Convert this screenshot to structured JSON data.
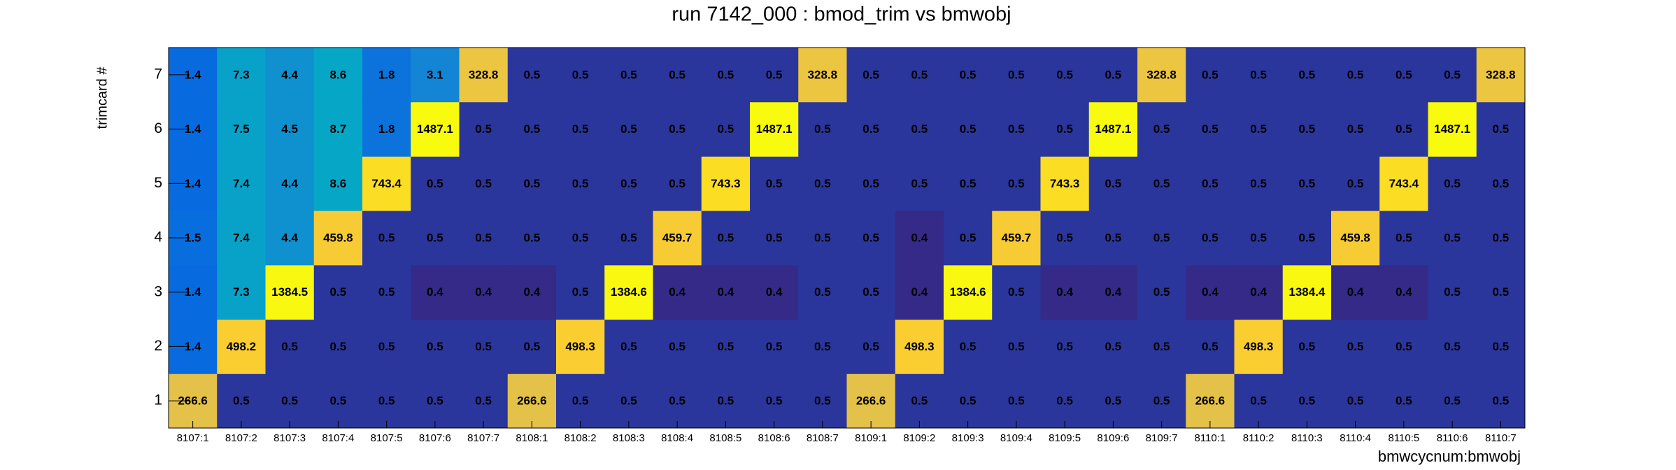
{
  "chart_data": {
    "type": "heatmap",
    "title": "run 7142_000 : bmod_trim vs bmwobj",
    "x_label": "bmwcycnum:bmwobj",
    "y_label": "trimcard #",
    "categories": [
      "8107:1",
      "8107:2",
      "8107:3",
      "8107:4",
      "8107:5",
      "8107:6",
      "8107:7",
      "8108:1",
      "8108:2",
      "8108:3",
      "8108:4",
      "8108:5",
      "8108:6",
      "8108:7",
      "8109:1",
      "8109:2",
      "8109:3",
      "8109:4",
      "8109:5",
      "8109:6",
      "8109:7",
      "8110:1",
      "8110:2",
      "8110:3",
      "8110:4",
      "8110:5",
      "8110:6",
      "8110:7"
    ],
    "ylim": [
      0.5,
      7.5
    ],
    "yticks": [
      1,
      2,
      3,
      4,
      5,
      6,
      7
    ],
    "logz": true,
    "palette": [
      "#352a87",
      "#0363e1",
      "#1485d4",
      "#06a7c6",
      "#38b99e",
      "#92bf73",
      "#d9ba56",
      "#fcce2e",
      "#f9fb0e"
    ],
    "z": [
      [
        266.6,
        0.5,
        0.5,
        0.5,
        0.5,
        0.5,
        0.5,
        266.6,
        0.5,
        0.5,
        0.5,
        0.5,
        0.5,
        0.5,
        266.6,
        0.5,
        0.5,
        0.5,
        0.5,
        0.5,
        0.5,
        266.6,
        0.5,
        0.5,
        0.5,
        0.5,
        0.5,
        0.5
      ],
      [
        1.4,
        498.2,
        0.5,
        0.5,
        0.5,
        0.5,
        0.5,
        0.5,
        498.3,
        0.5,
        0.5,
        0.5,
        0.5,
        0.5,
        0.5,
        498.3,
        0.5,
        0.5,
        0.5,
        0.5,
        0.5,
        0.5,
        498.3,
        0.5,
        0.5,
        0.5,
        0.5,
        0.5
      ],
      [
        1.4,
        7.3,
        1384.5,
        0.5,
        0.5,
        0.4,
        0.4,
        0.4,
        0.5,
        1384.6,
        0.4,
        0.4,
        0.4,
        0.5,
        0.5,
        0.4,
        1384.6,
        0.5,
        0.4,
        0.4,
        0.5,
        0.4,
        0.4,
        1384.4,
        0.4,
        0.4,
        0.5,
        0.5
      ],
      [
        1.5,
        7.4,
        4.4,
        459.8,
        0.5,
        0.5,
        0.5,
        0.5,
        0.5,
        0.5,
        459.7,
        0.5,
        0.5,
        0.5,
        0.5,
        0.4,
        0.5,
        459.7,
        0.5,
        0.5,
        0.5,
        0.5,
        0.5,
        0.5,
        459.8,
        0.5,
        0.5,
        0.5
      ],
      [
        1.4,
        7.4,
        4.4,
        8.6,
        743.4,
        0.5,
        0.5,
        0.5,
        0.5,
        0.5,
        0.5,
        743.3,
        0.5,
        0.5,
        0.5,
        0.5,
        0.5,
        0.5,
        743.3,
        0.5,
        0.5,
        0.5,
        0.5,
        0.5,
        0.5,
        743.4,
        0.5,
        0.5
      ],
      [
        1.4,
        7.5,
        4.5,
        8.7,
        1.8,
        1487.1,
        0.5,
        0.5,
        0.5,
        0.5,
        0.5,
        0.5,
        1487.1,
        0.5,
        0.5,
        0.5,
        0.5,
        0.5,
        0.5,
        1487.1,
        0.5,
        0.5,
        0.5,
        0.5,
        0.5,
        0.5,
        1487.1,
        0.5
      ],
      [
        1.4,
        7.3,
        4.4,
        8.6,
        1.8,
        3.1,
        328.8,
        0.5,
        0.5,
        0.5,
        0.5,
        0.5,
        0.5,
        328.8,
        0.5,
        0.5,
        0.5,
        0.5,
        0.5,
        0.5,
        328.8,
        0.5,
        0.5,
        0.5,
        0.5,
        0.5,
        0.5,
        328.8
      ]
    ]
  }
}
